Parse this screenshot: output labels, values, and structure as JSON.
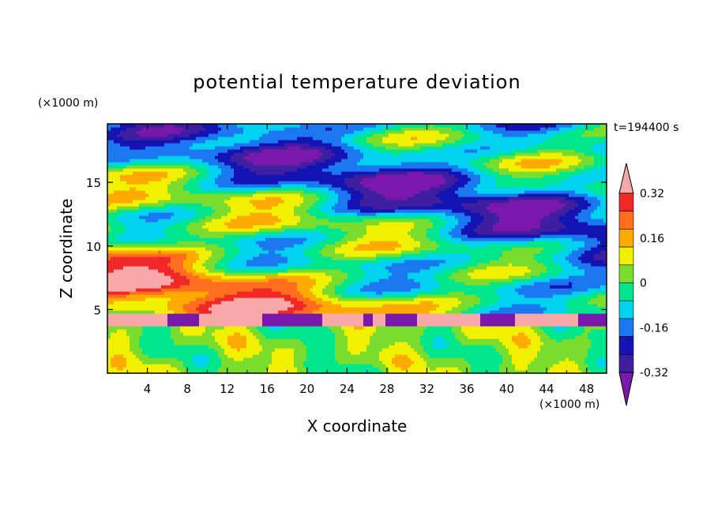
{
  "chart_data": {
    "type": "heatmap",
    "title": "potential temperature deviation",
    "xlabel": "X coordinate",
    "ylabel": "Z coordinate",
    "x_unit_label": "(×1000 m)",
    "y_unit_label": "(×1000 m)",
    "time_label": "t=194400 s",
    "xlim": [
      0,
      50
    ],
    "ylim": [
      0,
      19.6
    ],
    "x_ticks": [
      4,
      8,
      12,
      16,
      20,
      24,
      28,
      32,
      36,
      40,
      44,
      48
    ],
    "y_ticks": [
      5,
      10,
      15
    ],
    "colorbar": {
      "levels": [
        -0.4,
        -0.32,
        -0.24,
        -0.16,
        -0.08,
        0,
        0.08,
        0.16,
        0.24,
        0.32,
        0.4
      ],
      "tick_labels": [
        "0.32",
        "0.16",
        "0",
        "-0.16",
        "-0.32"
      ],
      "tick_values": [
        0.32,
        0.16,
        0,
        -0.16,
        -0.32
      ],
      "extend": "both",
      "colors": [
        "#7a18ab",
        "#3f1fa0",
        "#1414b4",
        "#1c78f0",
        "#00d2f0",
        "#00e68c",
        "#7adc2c",
        "#f0f000",
        "#ffaa00",
        "#ff6e1e",
        "#f02828",
        "#f8a8a8"
      ]
    }
  }
}
